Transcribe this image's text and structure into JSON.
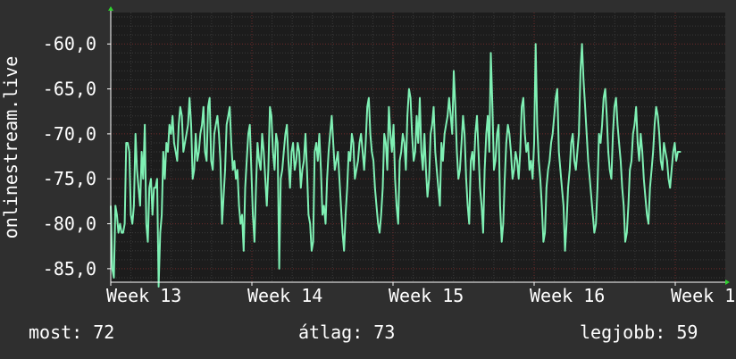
{
  "colors": {
    "background": "#2f2f2f",
    "plot_background": "#1c1c1c",
    "major_grid": "#6b2a2a",
    "minor_grid": "#3a3a3a",
    "line": "#7ff0b4",
    "axis": "#ffffff",
    "arrow": "#2fd12f"
  },
  "stats": {
    "current": "most: 72",
    "average": "átlag: 73",
    "max": "legjobb: 59"
  },
  "chart_data": {
    "type": "line",
    "ylabel": "onlinestream.live",
    "title": "",
    "grid": true,
    "x_ticks": [
      "Week 13",
      "Week 14",
      "Week 15",
      "Week 16",
      "Week 1"
    ],
    "x_range": [
      0,
      4.04
    ],
    "y_ticks": [
      "-60,0",
      "-65,0",
      "-70,0",
      "-75,0",
      "-80,0",
      "-85,0"
    ],
    "y_tick_values": [
      -60,
      -65,
      -70,
      -75,
      -80,
      -85
    ],
    "ylim": [
      -86.5,
      -56.5
    ],
    "series": [
      {
        "values": [
          -78,
          -85,
          -86,
          -78,
          -79,
          -81,
          -80,
          -81,
          -81,
          -80,
          -71,
          -71,
          -72,
          -79,
          -80,
          -78,
          -70,
          -74,
          -76,
          -78,
          -72,
          -75,
          -69,
          -80,
          -82,
          -76,
          -75,
          -79,
          -76,
          -76,
          -75,
          -87,
          -81,
          -79,
          -72,
          -75,
          -71,
          -72,
          -69,
          -70,
          -68,
          -71,
          -72,
          -73,
          -69,
          -67,
          -68,
          -72,
          -71,
          -70,
          -69,
          -66,
          -69,
          -75,
          -74,
          -70,
          -73,
          -72,
          -70,
          -69,
          -67,
          -72,
          -73,
          -67,
          -66,
          -73,
          -74,
          -70,
          -69,
          -68,
          -70,
          -73,
          -80,
          -77,
          -74,
          -69,
          -68,
          -67,
          -71,
          -74,
          -73,
          -75,
          -74,
          -78,
          -80,
          -79,
          -83,
          -76,
          -73,
          -70,
          -69,
          -74,
          -79,
          -82,
          -76,
          -71,
          -73,
          -74,
          -70,
          -72,
          -75,
          -78,
          -74,
          -67,
          -68,
          -72,
          -74,
          -70,
          -71,
          -85,
          -75,
          -74,
          -72,
          -70,
          -69,
          -73,
          -76,
          -72,
          -71,
          -74,
          -73,
          -71,
          -72,
          -76,
          -74,
          -73,
          -70,
          -74,
          -79,
          -80,
          -83,
          -82,
          -72,
          -71,
          -73,
          -70,
          -74,
          -79,
          -78,
          -80,
          -75,
          -72,
          -70,
          -68,
          -71,
          -74,
          -73,
          -72,
          -75,
          -78,
          -81,
          -83,
          -79,
          -76,
          -72,
          -73,
          -70,
          -71,
          -75,
          -74,
          -73,
          -71,
          -70,
          -72,
          -74,
          -71,
          -67,
          -66,
          -70,
          -72,
          -73,
          -76,
          -78,
          -80,
          -81,
          -79,
          -76,
          -70,
          -71,
          -74,
          -67,
          -70,
          -72,
          -69,
          -75,
          -78,
          -80,
          -73,
          -72,
          -70,
          -71,
          -74,
          -68,
          -65,
          -66,
          -70,
          -73,
          -72,
          -68,
          -71,
          -66,
          -72,
          -74,
          -70,
          -74,
          -77,
          -75,
          -70,
          -69,
          -67,
          -72,
          -74,
          -76,
          -78,
          -71,
          -73,
          -70,
          -69,
          -68,
          -66,
          -68,
          -70,
          -63,
          -67,
          -72,
          -75,
          -74,
          -71,
          -68,
          -70,
          -75,
          -78,
          -80,
          -73,
          -72,
          -74,
          -70,
          -68,
          -72,
          -76,
          -78,
          -81,
          -74,
          -70,
          -68,
          -72,
          -61,
          -67,
          -74,
          -73,
          -70,
          -69,
          -78,
          -82,
          -80,
          -75,
          -71,
          -69,
          -70,
          -72,
          -75,
          -74,
          -72,
          -73,
          -75,
          -72,
          -67,
          -66,
          -70,
          -72,
          -71,
          -74,
          -73,
          -75,
          -71,
          -60,
          -69,
          -73,
          -75,
          -78,
          -82,
          -81,
          -76,
          -74,
          -73,
          -71,
          -70,
          -68,
          -66,
          -65,
          -72,
          -74,
          -76,
          -78,
          -83,
          -80,
          -76,
          -74,
          -71,
          -70,
          -73,
          -74,
          -72,
          -70,
          -63,
          -60,
          -64,
          -67,
          -70,
          -73,
          -75,
          -77,
          -79,
          -81,
          -80,
          -76,
          -70,
          -71,
          -69,
          -66,
          -65,
          -68,
          -72,
          -74,
          -75,
          -70,
          -67,
          -66,
          -69,
          -71,
          -73,
          -76,
          -78,
          -82,
          -81,
          -78,
          -74,
          -73,
          -70,
          -69,
          -67,
          -71,
          -73,
          -70,
          -72,
          -75,
          -77,
          -79,
          -80,
          -76,
          -74,
          -72,
          -69,
          -67,
          -68,
          -70,
          -73,
          -74,
          -71,
          -72,
          -73,
          -75,
          -76,
          -74,
          -72,
          -71,
          -73,
          -72,
          -72,
          -72
        ]
      }
    ]
  }
}
